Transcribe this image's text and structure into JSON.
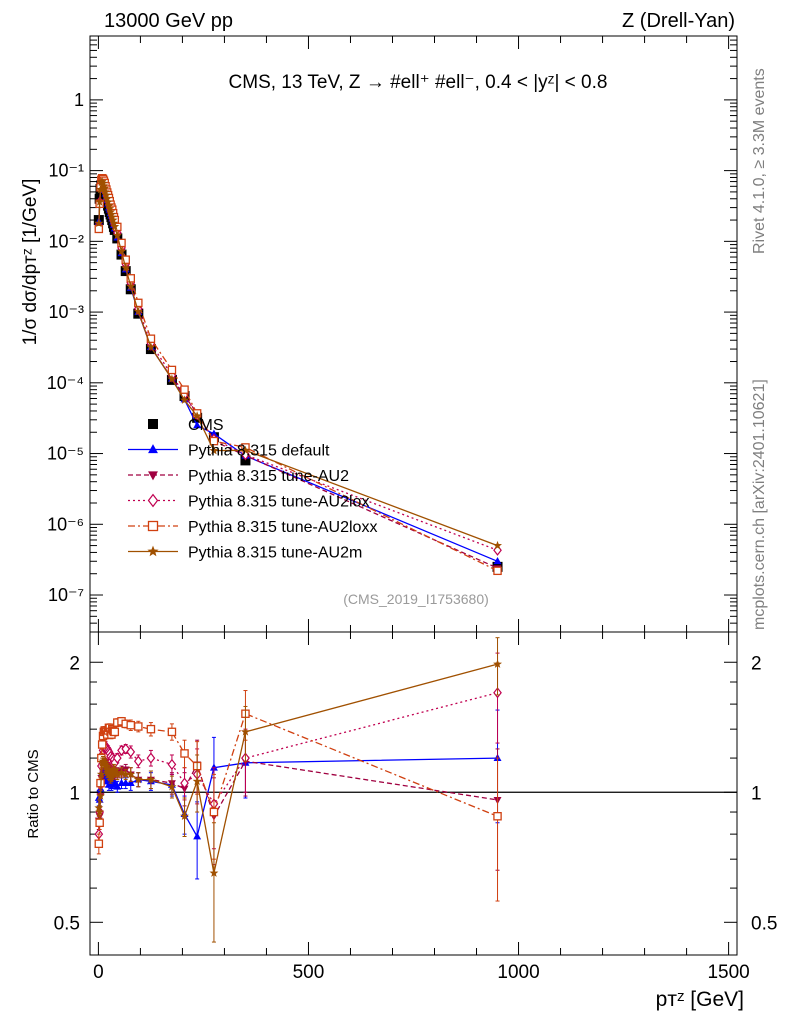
{
  "header": {
    "left": "13000 GeV pp",
    "right": "Z (Drell-Yan)"
  },
  "side_labels": {
    "rivet": "Rivet 4.1.0, ≥ 3.3M events",
    "mcplots": "mcplots.cern.ch [arXiv:2401.10621]"
  },
  "chart_data": [
    {
      "type": "scatter",
      "title": "CMS, 13 TeV, Z →  #ell⁺ #ell⁻, 0.4 < |yᶻ| < 0.8",
      "analysis_tag": "(CMS_2019_I1753680)",
      "xlabel": "pᴛᶻ [GeV]",
      "ylabel": "1/σ dσ/dpᴛᶻ [1/GeV]",
      "xlim": [
        -20,
        1520
      ],
      "ylim": [
        3e-08,
        8
      ],
      "yscale": "log",
      "y_ticks": [
        {
          "v": 1,
          "label": "1"
        },
        {
          "v": 0.1,
          "label": "10⁻¹"
        },
        {
          "v": 0.01,
          "label": "10⁻²"
        },
        {
          "v": 0.001,
          "label": "10⁻³"
        },
        {
          "v": 0.0001,
          "label": "10⁻⁴"
        },
        {
          "v": 1e-05,
          "label": "10⁻⁵"
        },
        {
          "v": 1e-06,
          "label": "10⁻⁶"
        },
        {
          "v": 1e-07,
          "label": "10⁻⁷"
        }
      ],
      "x": [
        1,
        3,
        5,
        7,
        9,
        11,
        13,
        15,
        17,
        19,
        21,
        23,
        25,
        27,
        29,
        31,
        33,
        35,
        37,
        39,
        45,
        55,
        65,
        77,
        95,
        125,
        175,
        205,
        235,
        275,
        350,
        950
      ],
      "series": [
        {
          "name": "CMS",
          "color": "#000000",
          "marker": "square",
          "dash": "none",
          "values": [
            0.02,
            0.04,
            0.055,
            0.062,
            0.06,
            0.056,
            0.052,
            0.048,
            0.043,
            0.039,
            0.036,
            0.032,
            0.029,
            0.026,
            0.024,
            0.022,
            0.02,
            0.018,
            0.016,
            0.0145,
            0.011,
            0.0065,
            0.0038,
            0.0021,
            0.00095,
            0.0003,
            0.00011,
            6.5e-05,
            3.2e-05,
            1.7e-05,
            8e-06,
            2.5e-07
          ]
        },
        {
          "name": "Pythia 8.315 default",
          "color": "#0000ff",
          "marker": "triangle",
          "dash": "none",
          "values": [
            0.019,
            0.038,
            0.056,
            0.066,
            0.067,
            0.063,
            0.058,
            0.053,
            0.047,
            0.042,
            0.038,
            0.034,
            0.03,
            0.028,
            0.025,
            0.023,
            0.021,
            0.019,
            0.017,
            0.0152,
            0.0113,
            0.0068,
            0.004,
            0.0022,
            0.001,
            0.00032,
            0.000114,
            5.8e-05,
            2.5e-05,
            1.9e-05,
            9.3e-06,
            3e-07
          ]
        },
        {
          "name": "Pythia 8.315 tune-AU2",
          "color": "#a00040",
          "marker": "triangle-down",
          "dash": "5,3",
          "values": [
            0.017,
            0.035,
            0.054,
            0.067,
            0.069,
            0.066,
            0.062,
            0.057,
            0.051,
            0.046,
            0.041,
            0.037,
            0.033,
            0.03,
            0.027,
            0.024,
            0.022,
            0.02,
            0.018,
            0.016,
            0.0122,
            0.0073,
            0.0043,
            0.0023,
            0.00102,
            0.00032,
            0.000115,
            6.6e-05,
            3.7e-05,
            1.5e-05,
            9.4e-06,
            2.4e-07
          ]
        },
        {
          "name": "Pythia 8.315 tune-AU2lox",
          "color": "#c00050",
          "marker": "diamond",
          "dash": "2,3",
          "values": [
            0.016,
            0.036,
            0.057,
            0.071,
            0.073,
            0.07,
            0.066,
            0.061,
            0.055,
            0.049,
            0.044,
            0.04,
            0.036,
            0.032,
            0.029,
            0.026,
            0.024,
            0.021,
            0.019,
            0.017,
            0.0132,
            0.0081,
            0.0048,
            0.0026,
            0.00112,
            0.00036,
            0.000128,
            6.8e-05,
            3.5e-05,
            1.6e-05,
            9.6e-06,
            4.3e-07
          ]
        },
        {
          "name": "Pythia 8.315 tune-AU2loxx",
          "color": "#d04010",
          "marker": "open-square",
          "dash": "7,3,2,3",
          "values": [
            0.015,
            0.034,
            0.058,
            0.074,
            0.078,
            0.076,
            0.072,
            0.067,
            0.06,
            0.054,
            0.049,
            0.045,
            0.041,
            0.037,
            0.033,
            0.03,
            0.028,
            0.025,
            0.022,
            0.02,
            0.016,
            0.0095,
            0.0055,
            0.003,
            0.00135,
            0.00042,
            0.000152,
            8e-05,
            3.7e-05,
            1.5e-05,
            1.22e-05,
            2.2e-07
          ]
        },
        {
          "name": "Pythia 8.315 tune-AU2m",
          "color": "#a05000",
          "marker": "star",
          "dash": "none",
          "values": [
            0.018,
            0.036,
            0.054,
            0.068,
            0.07,
            0.066,
            0.061,
            0.056,
            0.05,
            0.045,
            0.04,
            0.036,
            0.032,
            0.029,
            0.026,
            0.024,
            0.022,
            0.02,
            0.018,
            0.0162,
            0.0121,
            0.0072,
            0.0042,
            0.0023,
            0.00102,
            0.00032,
            0.000113,
            5.7e-05,
            3.4e-05,
            1.1e-05,
            1.11e-05,
            5e-07
          ]
        }
      ],
      "legend": {
        "placement": "bottom-left",
        "entries": [
          "CMS",
          "Pythia 8.315 default",
          "Pythia 8.315 tune-AU2",
          "Pythia 8.315 tune-AU2lox",
          "Pythia 8.315 tune-AU2loxx",
          "Pythia 8.315 tune-AU2m"
        ]
      }
    },
    {
      "type": "scatter",
      "title": "",
      "xlabel": "pᴛᶻ [GeV]",
      "ylabel": "Ratio to CMS",
      "xlim": [
        -20,
        1520
      ],
      "ylim": [
        0.42,
        2.35
      ],
      "yscale": "log",
      "y_ticks": [
        {
          "v": 0.5,
          "label": "0.5"
        },
        {
          "v": 1,
          "label": "1"
        },
        {
          "v": 2,
          "label": "2"
        }
      ],
      "x_ticks": [
        {
          "v": 0,
          "label": "0"
        },
        {
          "v": 500,
          "label": "500"
        },
        {
          "v": 1000,
          "label": "1000"
        },
        {
          "v": 1500,
          "label": "1500"
        }
      ],
      "reference_line": 1,
      "x": [
        1,
        3,
        5,
        7,
        9,
        11,
        13,
        15,
        17,
        19,
        21,
        23,
        25,
        27,
        29,
        31,
        33,
        35,
        37,
        39,
        45,
        55,
        65,
        77,
        95,
        125,
        175,
        205,
        235,
        275,
        350,
        950
      ],
      "series": [
        {
          "name": "Pythia 8.315 default",
          "color": "#0000ff",
          "marker": "triangle",
          "dash": "none",
          "values": [
            0.97,
            0.96,
            1.02,
            1.06,
            1.11,
            1.12,
            1.12,
            1.1,
            1.09,
            1.08,
            1.06,
            1.06,
            1.04,
            1.08,
            1.05,
            1.04,
            1.05,
            1.05,
            1.06,
            1.05,
            1.03,
            1.05,
            1.05,
            1.05,
            1.07,
            1.06,
            1.04,
            0.89,
            0.79,
            1.14,
            1.17,
            1.2
          ],
          "errors": [
            0.04,
            0.03,
            0.03,
            0.03,
            0.03,
            0.03,
            0.03,
            0.03,
            0.03,
            0.03,
            0.03,
            0.03,
            0.03,
            0.03,
            0.03,
            0.03,
            0.03,
            0.03,
            0.03,
            0.03,
            0.03,
            0.03,
            0.03,
            0.04,
            0.04,
            0.05,
            0.06,
            0.09,
            0.16,
            0.2,
            0.2,
            0.35
          ]
        },
        {
          "name": "Pythia 8.315 tune-AU2",
          "color": "#a00040",
          "marker": "triangle-down",
          "dash": "5,3",
          "values": [
            0.86,
            0.88,
            0.98,
            1.08,
            1.15,
            1.18,
            1.19,
            1.19,
            1.19,
            1.18,
            1.14,
            1.16,
            1.14,
            1.15,
            1.13,
            1.09,
            1.1,
            1.11,
            1.12,
            1.1,
            1.11,
            1.12,
            1.13,
            1.1,
            1.07,
            1.07,
            1.05,
            1.02,
            1.16,
            0.88,
            1.18,
            0.96
          ],
          "errors": [
            0.04,
            0.03,
            0.03,
            0.03,
            0.03,
            0.03,
            0.03,
            0.03,
            0.03,
            0.03,
            0.03,
            0.03,
            0.03,
            0.03,
            0.03,
            0.03,
            0.03,
            0.03,
            0.03,
            0.03,
            0.03,
            0.03,
            0.03,
            0.04,
            0.04,
            0.05,
            0.06,
            0.09,
            0.16,
            0.2,
            0.2,
            0.3
          ]
        },
        {
          "name": "Pythia 8.315 tune-AU2lox",
          "color": "#c00050",
          "marker": "diamond",
          "dash": "2,3",
          "values": [
            0.8,
            0.9,
            1.04,
            1.15,
            1.22,
            1.25,
            1.27,
            1.27,
            1.28,
            1.26,
            1.22,
            1.25,
            1.24,
            1.23,
            1.21,
            1.18,
            1.2,
            1.17,
            1.19,
            1.17,
            1.2,
            1.25,
            1.26,
            1.24,
            1.18,
            1.2,
            1.16,
            1.05,
            1.1,
            0.94,
            1.2,
            1.7
          ],
          "errors": [
            0.04,
            0.03,
            0.03,
            0.03,
            0.03,
            0.03,
            0.03,
            0.03,
            0.03,
            0.03,
            0.03,
            0.03,
            0.03,
            0.03,
            0.03,
            0.03,
            0.03,
            0.03,
            0.03,
            0.03,
            0.03,
            0.03,
            0.03,
            0.04,
            0.04,
            0.05,
            0.06,
            0.09,
            0.16,
            0.2,
            0.2,
            0.4
          ]
        },
        {
          "name": "Pythia 8.315 tune-AU2loxx",
          "color": "#d04010",
          "marker": "open-square",
          "dash": "7,3,2,3",
          "values": [
            0.76,
            0.85,
            1.05,
            1.2,
            1.29,
            1.35,
            1.38,
            1.39,
            1.39,
            1.38,
            1.36,
            1.39,
            1.41,
            1.41,
            1.38,
            1.36,
            1.4,
            1.39,
            1.38,
            1.38,
            1.45,
            1.46,
            1.44,
            1.43,
            1.42,
            1.4,
            1.38,
            1.23,
            1.15,
            0.9,
            1.52,
            0.88
          ],
          "errors": [
            0.04,
            0.03,
            0.03,
            0.03,
            0.03,
            0.03,
            0.03,
            0.03,
            0.03,
            0.03,
            0.03,
            0.03,
            0.03,
            0.03,
            0.03,
            0.03,
            0.03,
            0.03,
            0.03,
            0.03,
            0.03,
            0.03,
            0.03,
            0.04,
            0.04,
            0.05,
            0.06,
            0.09,
            0.16,
            0.2,
            0.2,
            0.32
          ]
        },
        {
          "name": "Pythia 8.315 tune-AU2m",
          "color": "#a05000",
          "marker": "star",
          "dash": "none",
          "values": [
            0.92,
            0.9,
            0.98,
            1.1,
            1.17,
            1.18,
            1.17,
            1.17,
            1.16,
            1.15,
            1.11,
            1.12,
            1.1,
            1.12,
            1.08,
            1.09,
            1.1,
            1.11,
            1.13,
            1.12,
            1.1,
            1.11,
            1.1,
            1.1,
            1.07,
            1.07,
            1.03,
            0.88,
            1.06,
            0.65,
            1.38,
            1.98
          ],
          "errors": [
            0.04,
            0.03,
            0.03,
            0.03,
            0.03,
            0.03,
            0.03,
            0.03,
            0.03,
            0.03,
            0.03,
            0.03,
            0.03,
            0.03,
            0.03,
            0.03,
            0.03,
            0.03,
            0.03,
            0.03,
            0.03,
            0.03,
            0.03,
            0.04,
            0.04,
            0.05,
            0.06,
            0.09,
            0.16,
            0.2,
            0.2,
            0.3
          ]
        }
      ]
    }
  ]
}
